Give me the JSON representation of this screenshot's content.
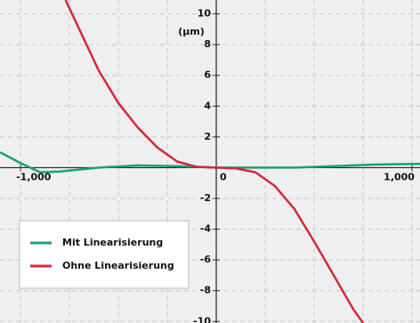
{
  "chart_data": {
    "type": "line",
    "y_axis_label": "(μm)",
    "xlim": [
      -1105,
      1041
    ],
    "ylim": [
      -10.1,
      10.9
    ],
    "xticks": [
      {
        "value": -1000,
        "label": "-1,000"
      },
      0,
      {
        "value": 1000,
        "label": "1,000"
      }
    ],
    "x_minor_ticks": [
      -750,
      -500,
      -250,
      250,
      500,
      750
    ],
    "yticks": [
      10,
      8,
      6,
      4,
      2,
      -2,
      -4,
      -6,
      -8,
      -10
    ],
    "grid": true,
    "legend": "lower left",
    "series": [
      {
        "name": "Mit Linearisierung",
        "color": "#1aa36b",
        "x": [
          -1105,
          -1000,
          -900,
          -800,
          -600,
          -400,
          -200,
          0,
          200,
          400,
          600,
          800,
          1041
        ],
        "values": [
          1.0,
          0.3,
          -0.3,
          -0.25,
          0,
          0.15,
          0.1,
          0,
          0,
          0,
          0.1,
          0.2,
          0.25
        ]
      },
      {
        "name": "Ohne Linearisierung",
        "color": "#d7263d",
        "x": [
          -770,
          -700,
          -600,
          -500,
          -400,
          -300,
          -200,
          -100,
          0,
          100,
          200,
          300,
          400,
          500,
          600,
          700,
          750
        ],
        "values": [
          10.9,
          9.0,
          6.3,
          4.2,
          2.6,
          1.3,
          0.4,
          0.05,
          0,
          -0.05,
          -0.3,
          -1.2,
          -2.7,
          -4.8,
          -7.0,
          -9.2,
          -10.1
        ]
      }
    ]
  }
}
